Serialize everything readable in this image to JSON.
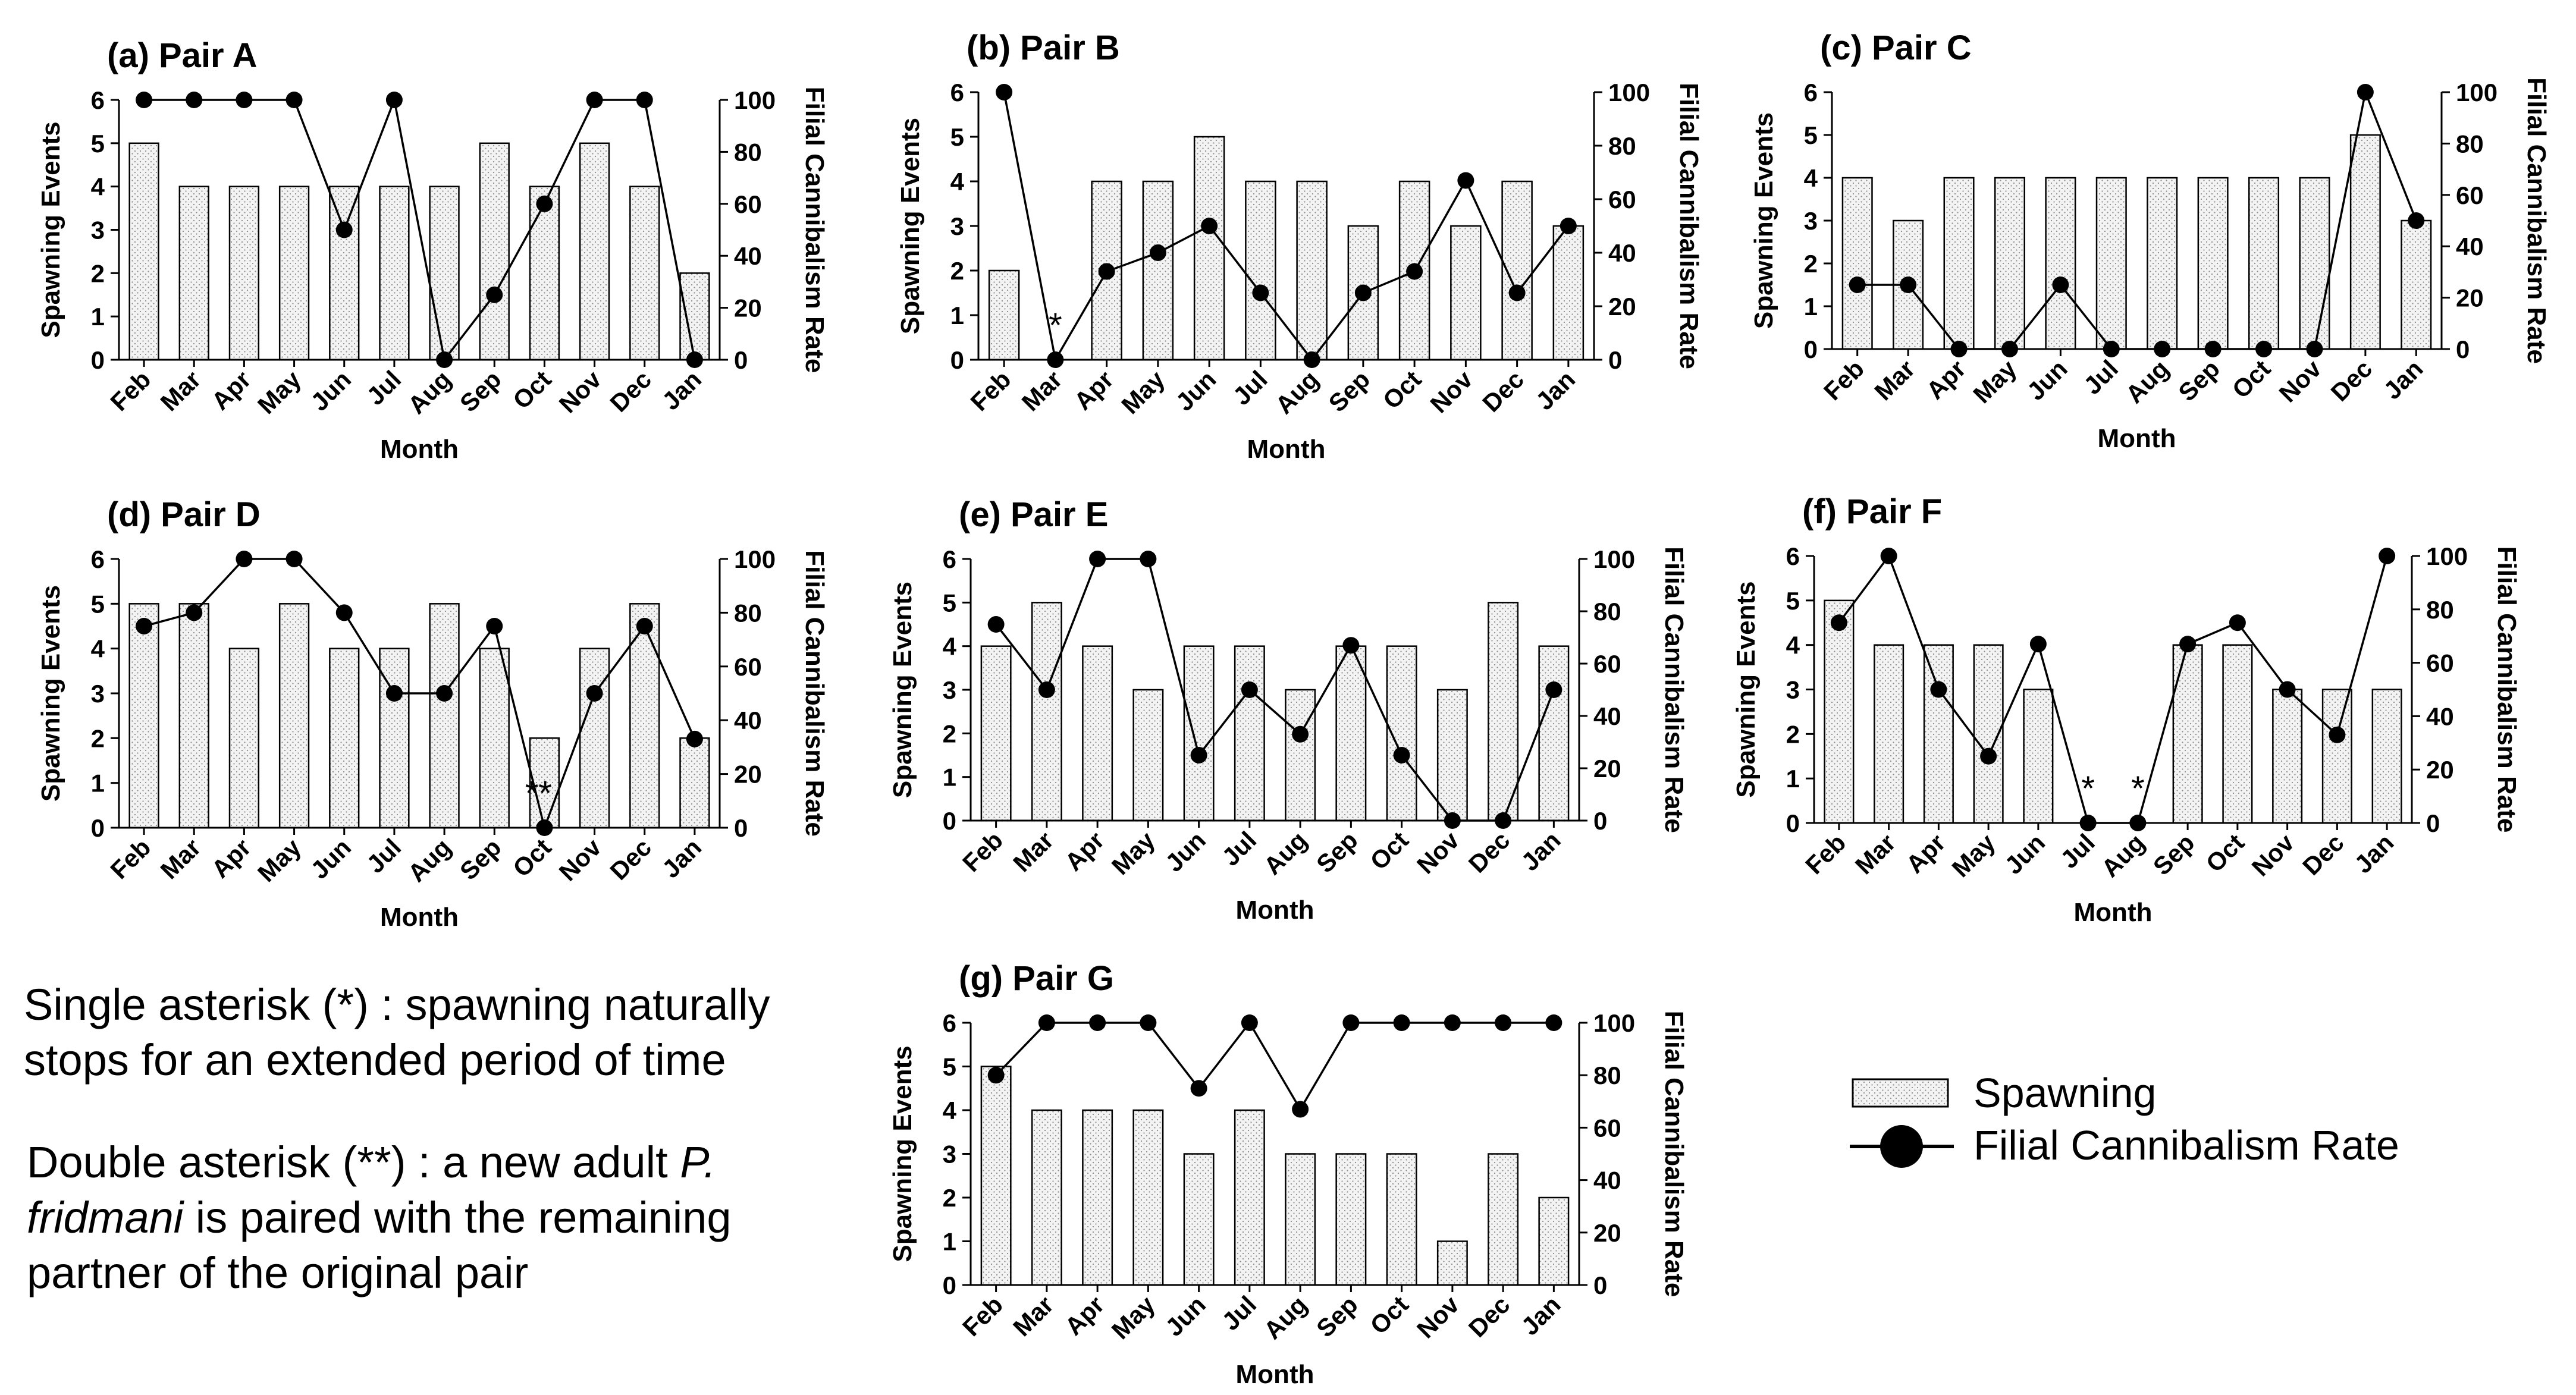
{
  "chart_data": [
    {
      "type": "bar",
      "title": "(a) Pair A",
      "xlabel": "Month",
      "ylabel": "Spawning Events",
      "ylabel_right": "Filial Cannibalism Rate",
      "ylim": [
        0,
        6
      ],
      "ylim_right": [
        0,
        100
      ],
      "categories": [
        "Feb",
        "Mar",
        "Apr",
        "May",
        "Jun",
        "Jul",
        "Aug",
        "Sep",
        "Oct",
        "Nov",
        "Dec",
        "Jan"
      ],
      "series": [
        {
          "name": "Spawning",
          "type": "bar",
          "values": [
            5,
            4,
            4,
            4,
            4,
            4,
            4,
            5,
            4,
            5,
            4,
            2
          ]
        },
        {
          "name": "Filial Cannibalism Rate",
          "type": "line",
          "values": [
            100,
            100,
            100,
            100,
            50,
            100,
            0,
            25,
            60,
            100,
            100,
            0
          ]
        }
      ],
      "annotations": []
    },
    {
      "type": "bar",
      "title": "(b) Pair B",
      "xlabel": "Month",
      "ylabel": "Spawning Events",
      "ylabel_right": "Filial Cannibalism Rate",
      "ylim": [
        0,
        6
      ],
      "ylim_right": [
        0,
        100
      ],
      "categories": [
        "Feb",
        "Mar",
        "Apr",
        "May",
        "Jun",
        "Jul",
        "Aug",
        "Sep",
        "Oct",
        "Nov",
        "Dec",
        "Jan"
      ],
      "series": [
        {
          "name": "Spawning",
          "type": "bar",
          "values": [
            2,
            0,
            4,
            4,
            5,
            4,
            4,
            3,
            4,
            3,
            4,
            3
          ]
        },
        {
          "name": "Filial Cannibalism Rate",
          "type": "line",
          "values": [
            100,
            0,
            33,
            40,
            50,
            25,
            0,
            25,
            33,
            67,
            25,
            50
          ]
        }
      ],
      "annotations": [
        {
          "month": "Mar",
          "text": "*"
        }
      ]
    },
    {
      "type": "bar",
      "title": "(c) Pair C",
      "xlabel": "Month",
      "ylabel": "Spawning Events",
      "ylabel_right": "Filial Cannibalism Rate",
      "ylim": [
        0,
        6
      ],
      "ylim_right": [
        0,
        100
      ],
      "categories": [
        "Feb",
        "Mar",
        "Apr",
        "May",
        "Jun",
        "Jul",
        "Aug",
        "Sep",
        "Oct",
        "Nov",
        "Dec",
        "Jan"
      ],
      "series": [
        {
          "name": "Spawning",
          "type": "bar",
          "values": [
            4,
            3,
            4,
            4,
            4,
            4,
            4,
            4,
            4,
            4,
            5,
            3
          ]
        },
        {
          "name": "Filial Cannibalism Rate",
          "type": "line",
          "values": [
            25,
            25,
            0,
            0,
            25,
            0,
            0,
            0,
            0,
            0,
            100,
            50
          ]
        }
      ],
      "annotations": []
    },
    {
      "type": "bar",
      "title": "(d) Pair D",
      "xlabel": "Month",
      "ylabel": "Spawning Events",
      "ylabel_right": "Filial Cannibalism Rate",
      "ylim": [
        0,
        6
      ],
      "ylim_right": [
        0,
        100
      ],
      "categories": [
        "Feb",
        "Mar",
        "Apr",
        "May",
        "Jun",
        "Jul",
        "Aug",
        "Sep",
        "Oct",
        "Nov",
        "Dec",
        "Jan"
      ],
      "series": [
        {
          "name": "Spawning",
          "type": "bar",
          "values": [
            5,
            5,
            4,
            5,
            4,
            4,
            5,
            4,
            2,
            4,
            5,
            2
          ]
        },
        {
          "name": "Filial Cannibalism Rate",
          "type": "line",
          "values": [
            75,
            80,
            100,
            100,
            80,
            50,
            50,
            75,
            0,
            50,
            75,
            33
          ]
        }
      ],
      "annotations": [
        {
          "month": "Oct",
          "text": "**"
        }
      ]
    },
    {
      "type": "bar",
      "title": "(e) Pair E",
      "xlabel": "Month",
      "ylabel": "Spawning Events",
      "ylabel_right": "Filial Cannibalism Rate",
      "ylim": [
        0,
        6
      ],
      "ylim_right": [
        0,
        100
      ],
      "categories": [
        "Feb",
        "Mar",
        "Apr",
        "May",
        "Jun",
        "Jul",
        "Aug",
        "Sep",
        "Oct",
        "Nov",
        "Dec",
        "Jan"
      ],
      "series": [
        {
          "name": "Spawning",
          "type": "bar",
          "values": [
            4,
            5,
            4,
            3,
            4,
            4,
            3,
            4,
            4,
            3,
            5,
            4
          ]
        },
        {
          "name": "Filial Cannibalism Rate",
          "type": "line",
          "values": [
            75,
            50,
            100,
            100,
            25,
            50,
            33,
            67,
            25,
            0,
            0,
            50
          ]
        }
      ],
      "annotations": []
    },
    {
      "type": "bar",
      "title": "(f) Pair F",
      "xlabel": "Month",
      "ylabel": "Spawning Events",
      "ylabel_right": "Filial Cannibalism Rate",
      "ylim": [
        0,
        6
      ],
      "ylim_right": [
        0,
        100
      ],
      "categories": [
        "Feb",
        "Mar",
        "Apr",
        "May",
        "Jun",
        "Jul",
        "Aug",
        "Sep",
        "Oct",
        "Nov",
        "Dec",
        "Jan"
      ],
      "series": [
        {
          "name": "Spawning",
          "type": "bar",
          "values": [
            5,
            4,
            4,
            4,
            3,
            0,
            0,
            4,
            4,
            3,
            3,
            3
          ]
        },
        {
          "name": "Filial Cannibalism Rate",
          "type": "line",
          "values": [
            75,
            100,
            50,
            25,
            67,
            0,
            0,
            67,
            75,
            50,
            33,
            100
          ]
        }
      ],
      "annotations": [
        {
          "month": "Jul",
          "text": "*"
        },
        {
          "month": "Aug",
          "text": "*"
        }
      ]
    },
    {
      "type": "bar",
      "title": "(g) Pair G",
      "xlabel": "Month",
      "ylabel": "Spawning Events",
      "ylabel_right": "Filial Cannibalism Rate",
      "ylim": [
        0,
        6
      ],
      "ylim_right": [
        0,
        100
      ],
      "categories": [
        "Feb",
        "Mar",
        "Apr",
        "May",
        "Jun",
        "Jul",
        "Aug",
        "Sep",
        "Oct",
        "Nov",
        "Dec",
        "Jan"
      ],
      "series": [
        {
          "name": "Spawning",
          "type": "bar",
          "values": [
            5,
            4,
            4,
            4,
            3,
            4,
            3,
            3,
            3,
            1,
            3,
            2
          ]
        },
        {
          "name": "Filial Cannibalism Rate",
          "type": "line",
          "values": [
            80,
            100,
            100,
            100,
            75,
            100,
            67,
            100,
            100,
            100,
            100,
            100
          ]
        }
      ],
      "annotations": []
    }
  ],
  "notes": {
    "single_line1": "Single asterisk (*) : spawning naturally",
    "single_line2": "stops for an extended period of time",
    "double_line1_pre": "Double asterisk (**) :  a new adult ",
    "double_line1_italic": "P.",
    "double_line2_italic": "fridmani",
    "double_line2_post": " is paired with the remaining",
    "double_line3": "partner of the original pair"
  },
  "legend": {
    "spawning_label": "Spawning",
    "rate_label": "Filial Cannibalism Rate"
  },
  "colors": {
    "bar_fill": "#f2f2f2",
    "bar_stroke": "#000000",
    "line": "#000000"
  }
}
